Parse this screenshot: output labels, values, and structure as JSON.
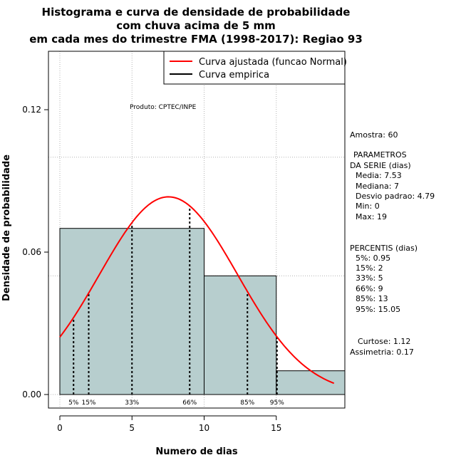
{
  "chart_data": {
    "type": "bar",
    "title_lines": [
      "Histograma e curva de densidade de probabilidade",
      "com chuva acima de 5 mm",
      "em cada mes do trimestre FMA (1998-2017): Regiao 93"
    ],
    "xlabel": "Numero de dias",
    "ylabel": "Densidade de probabilidade",
    "xlim": [
      0,
      20
    ],
    "ylim": [
      0,
      0.15
    ],
    "x_ticks": [
      0,
      5,
      10,
      15
    ],
    "x_tick_labels": [
      "0",
      "5",
      "10",
      "15"
    ],
    "y_ticks": [
      0.0,
      0.06,
      0.12
    ],
    "y_tick_labels": [
      "0.00",
      "0.06",
      "0.12"
    ],
    "grid": true,
    "bins": [
      {
        "start": 0,
        "end": 10,
        "density": 0.07
      },
      {
        "start": 10,
        "end": 15,
        "density": 0.05
      },
      {
        "start": 15,
        "end": 20,
        "density": 0.01
      }
    ],
    "normal_curve": {
      "mean": 7.53,
      "sd": 4.79,
      "x_start": 0,
      "x_end": 19
    },
    "percentiles": [
      {
        "label": "5%",
        "x": 0.95
      },
      {
        "label": "15%",
        "x": 2
      },
      {
        "label": "33%",
        "x": 5
      },
      {
        "label": "66%",
        "x": 9
      },
      {
        "label": "85%",
        "x": 13
      },
      {
        "label": "95%",
        "x": 15.05
      }
    ],
    "legend": {
      "position": "top-right",
      "entries": [
        {
          "label": "Curva ajustada (funcao Normal)",
          "color": "#ff0000"
        },
        {
          "label": "Curva empirica",
          "color": "#000000"
        }
      ]
    },
    "annotation": "Produto: CPTEC/INPE",
    "colors": {
      "bar_fill": "#b7cece",
      "curve": "#ff0000",
      "grid": "#b3b3b3"
    }
  },
  "side_panel": {
    "amostra": "Amostra: 60",
    "param_header_1": "PARAMETROS",
    "param_header_2": "DA SERIE (dias)",
    "media": "Media: 7.53",
    "mediana": "Mediana: 7",
    "desvio": "Desvio padrao: 4.79",
    "min": "Min: 0",
    "max": "Max: 19",
    "perc_header": "PERCENTIS (dias)",
    "p5": "5%: 0.95",
    "p15": "15%: 2",
    "p33": "33%: 5",
    "p66": "66%: 9",
    "p85": "85%: 13",
    "p95": "95%: 15.05",
    "curtose": "Curtose: 1.12",
    "assimetria": "Assimetria: 0.17"
  }
}
